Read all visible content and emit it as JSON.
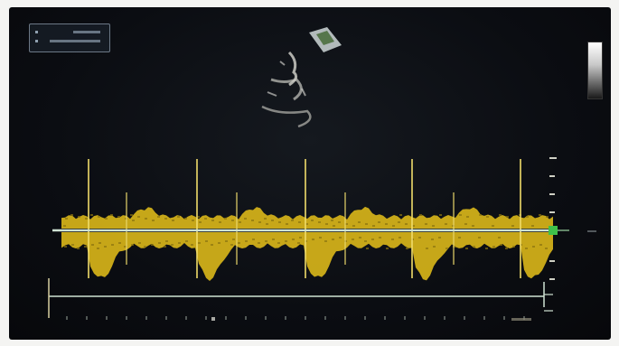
{
  "info_panel": {
    "line1": "",
    "line2": ""
  },
  "colors": {
    "spectral": "#e7c21a",
    "spectral_dim": "#8a7410",
    "baseline": "#cfe3d3",
    "marker_green": "#3fc04a",
    "background": "#0b0d12"
  },
  "icons": {
    "grayscale_bar": "grayscale-bar-icon",
    "transducer_marker": "transducer-marker-icon"
  }
}
